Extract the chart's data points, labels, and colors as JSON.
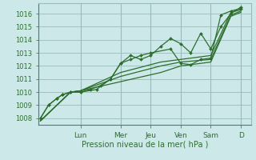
{
  "background_color": "#cce8e8",
  "grid_color": "#99bbbb",
  "line_color": "#2d6e2d",
  "text_color": "#2d6e2d",
  "xlabel": "Pression niveau de la mer( hPa )",
  "ylim": [
    1007.5,
    1016.8
  ],
  "yticks": [
    1008,
    1009,
    1010,
    1011,
    1012,
    1013,
    1014,
    1015,
    1016
  ],
  "day_labels": [
    "Lun",
    "Mer",
    "Jeu",
    "Ven",
    "Sam",
    "D"
  ],
  "day_positions": [
    2.0,
    4.0,
    5.5,
    7.0,
    8.5,
    10.0
  ],
  "xlim": [
    -0.1,
    10.5
  ],
  "series": [
    {
      "xs": [
        0.0,
        0.4,
        0.8,
        1.1,
        1.5,
        2.0,
        2.5,
        3.0,
        3.5,
        4.0,
        4.5,
        5.0,
        5.5,
        6.0,
        6.5,
        7.0,
        7.5,
        8.0,
        8.5,
        9.0,
        9.5,
        10.0
      ],
      "ys": [
        1008.0,
        1009.0,
        1009.5,
        1009.8,
        1010.0,
        1010.0,
        1010.2,
        1010.5,
        1011.0,
        1012.2,
        1012.8,
        1012.5,
        1012.8,
        1013.5,
        1014.1,
        1013.7,
        1013.0,
        1014.5,
        1013.3,
        1015.0,
        1016.0,
        1016.5
      ],
      "marker": true
    },
    {
      "xs": [
        0.0,
        0.4,
        0.8,
        1.1,
        1.5,
        2.0,
        2.8,
        3.5,
        4.0,
        4.5,
        5.0,
        5.5,
        6.5,
        7.0,
        7.5,
        8.0,
        8.5,
        9.0,
        9.5,
        10.0
      ],
      "ys": [
        1008.0,
        1009.0,
        1009.5,
        1009.8,
        1010.0,
        1010.0,
        1010.2,
        1011.0,
        1012.2,
        1012.5,
        1012.8,
        1013.0,
        1013.3,
        1012.2,
        1012.1,
        1012.5,
        1012.6,
        1015.9,
        1016.2,
        1016.4
      ],
      "marker": true
    },
    {
      "xs": [
        0.0,
        1.5,
        2.0,
        4.0,
        6.0,
        7.0,
        8.5,
        9.5,
        10.0
      ],
      "ys": [
        1007.8,
        1010.0,
        1010.1,
        1011.5,
        1012.3,
        1012.5,
        1012.8,
        1016.1,
        1016.3
      ],
      "marker": false
    },
    {
      "xs": [
        0.0,
        1.5,
        2.0,
        4.0,
        6.0,
        7.0,
        8.5,
        9.5,
        10.0
      ],
      "ys": [
        1007.8,
        1010.0,
        1010.1,
        1011.2,
        1012.0,
        1012.3,
        1012.5,
        1015.9,
        1016.2
      ],
      "marker": false
    },
    {
      "xs": [
        0.0,
        1.5,
        2.0,
        4.0,
        6.0,
        7.0,
        8.5,
        9.5,
        10.0
      ],
      "ys": [
        1007.8,
        1010.0,
        1010.1,
        1010.8,
        1011.5,
        1012.0,
        1012.3,
        1015.8,
        1016.1
      ],
      "marker": false
    }
  ]
}
